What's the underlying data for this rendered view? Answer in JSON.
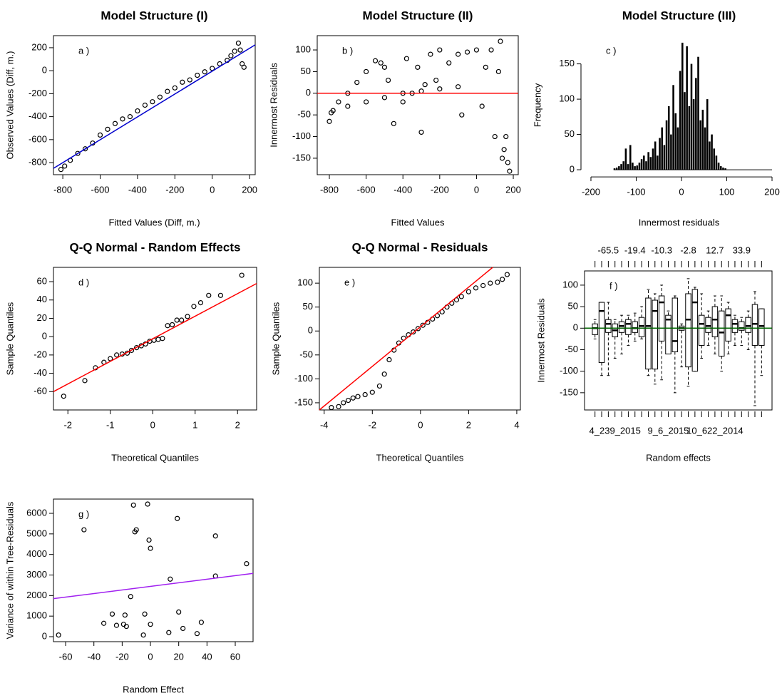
{
  "chart_data": [
    {
      "type": "scatter",
      "title": "Model Structure (I)",
      "x_label": "Fitted Values (Diff, m.)",
      "y_label": "Observed Values (Diff, m.)",
      "annotation": "a )",
      "frame": true,
      "xlim": [
        -850,
        230
      ],
      "ylim": [
        -905,
        305
      ],
      "xticks": [
        -800,
        -600,
        -400,
        -200,
        0,
        200
      ],
      "yticks": [
        -800,
        -600,
        -400,
        -200,
        0,
        200
      ],
      "x": [
        -810,
        -790,
        -760,
        -720,
        -680,
        -640,
        -600,
        -560,
        -520,
        -480,
        -440,
        -400,
        -360,
        -320,
        -280,
        -240,
        -200,
        -160,
        -120,
        -80,
        -40,
        0,
        40,
        80,
        100,
        120,
        140,
        150,
        160,
        170
      ],
      "y": [
        -860,
        -830,
        -780,
        -720,
        -680,
        -630,
        -560,
        -510,
        -460,
        -420,
        -400,
        -350,
        -300,
        -270,
        -230,
        -180,
        -150,
        -100,
        -80,
        -40,
        -10,
        20,
        60,
        90,
        130,
        170,
        240,
        180,
        60,
        30
      ],
      "line": {
        "color": "#0000cc",
        "x": [
          -850,
          230
        ],
        "y": [
          -850,
          225
        ]
      }
    },
    {
      "type": "scatter",
      "title": "Model Structure (II)",
      "x_label": "Fitted Values",
      "y_label": "Innermost Residuals",
      "annotation": "b )",
      "frame": true,
      "xlim": [
        -866,
        227
      ],
      "ylim": [
        -188,
        133
      ],
      "xticks": [
        -800,
        -600,
        -400,
        -200,
        0,
        200
      ],
      "yticks": [
        -150,
        -100,
        -50,
        0,
        50,
        100
      ],
      "x": [
        -800,
        -780,
        -750,
        -700,
        -650,
        -600,
        -550,
        -520,
        -500,
        -480,
        -450,
        -400,
        -380,
        -350,
        -320,
        -300,
        -280,
        -250,
        -220,
        -200,
        -150,
        -100,
        -80,
        -50,
        0,
        30,
        50,
        80,
        100,
        120,
        130,
        140,
        150,
        160,
        170,
        180,
        -790,
        -700,
        -600,
        -500,
        -400,
        -300,
        -200,
        -100
      ],
      "y": [
        -65,
        -40,
        -20,
        0,
        25,
        50,
        75,
        70,
        60,
        30,
        -70,
        -20,
        80,
        0,
        60,
        -90,
        20,
        90,
        30,
        100,
        70,
        90,
        -50,
        95,
        100,
        -30,
        60,
        100,
        -100,
        50,
        120,
        -150,
        -130,
        -100,
        -160,
        -180,
        -45,
        -30,
        -20,
        -10,
        0,
        5,
        10,
        15
      ],
      "hline": {
        "y": 0,
        "color": "#ff0000"
      }
    },
    {
      "type": "histogram",
      "title": "Model Structure (III)",
      "x_label": "Innermost residuals",
      "y_label": "Frequency",
      "annotation": "c )",
      "frame": false,
      "color": "#000000",
      "xlim": [
        -222,
        211
      ],
      "ylim": [
        -7,
        190
      ],
      "xticks": [
        -200,
        -100,
        0,
        100,
        200
      ],
      "yticks": [
        0,
        50,
        100,
        150
      ],
      "bins": [
        -150,
        -145,
        -140,
        -135,
        -130,
        -125,
        -120,
        -115,
        -110,
        -105,
        -100,
        -95,
        -90,
        -85,
        -80,
        -75,
        -70,
        -65,
        -60,
        -55,
        -50,
        -45,
        -40,
        -35,
        -30,
        -25,
        -20,
        -15,
        -10,
        -5,
        0,
        5,
        10,
        15,
        20,
        25,
        30,
        35,
        40,
        45,
        50,
        55,
        60,
        65,
        70,
        75,
        80,
        85,
        90,
        95,
        100
      ],
      "counts": [
        2,
        3,
        5,
        8,
        12,
        30,
        8,
        35,
        10,
        5,
        6,
        10,
        15,
        20,
        12,
        25,
        18,
        30,
        40,
        20,
        45,
        60,
        35,
        70,
        90,
        50,
        120,
        80,
        60,
        140,
        180,
        110,
        175,
        90,
        150,
        100,
        130,
        160,
        70,
        85,
        60,
        100,
        40,
        50,
        30,
        20,
        10,
        5,
        3,
        2
      ]
    },
    {
      "type": "scatter",
      "title": "Q-Q Normal - Random Effects",
      "x_label": "Theoretical Quantiles",
      "y_label": "Sample Quantiles",
      "annotation": "d )",
      "frame": true,
      "xlim": [
        -2.34,
        2.45
      ],
      "ylim": [
        -80,
        75.6
      ],
      "xticks": [
        -2,
        -1,
        0,
        1,
        2
      ],
      "yticks": [
        -60,
        -40,
        -20,
        0,
        20,
        40,
        60
      ],
      "x": [
        -2.1,
        -1.6,
        -1.35,
        -1.15,
        -1.0,
        -0.85,
        -0.72,
        -0.6,
        -0.5,
        -0.38,
        -0.27,
        -0.17,
        -0.07,
        0.03,
        0.13,
        0.23,
        0.35,
        0.46,
        0.57,
        0.68,
        0.82,
        0.97,
        1.13,
        1.32,
        1.6,
        2.1
      ],
      "y": [
        -65,
        -48,
        -34,
        -28,
        -24,
        -20,
        -19,
        -18,
        -15,
        -12,
        -10,
        -8,
        -5,
        -4,
        -3,
        -2,
        12,
        13,
        18,
        18,
        22,
        33,
        37,
        45,
        45,
        67
      ],
      "line": {
        "color": "#ff0000",
        "x": [
          -2.34,
          2.45
        ],
        "y": [
          -60,
          58
        ]
      }
    },
    {
      "type": "scatter",
      "title": "Q-Q Normal - Residuals",
      "x_label": "Theoretical Quantiles",
      "y_label": "Sample Quantiles",
      "annotation": "e )",
      "frame": true,
      "xlim": [
        -4.2,
        4.15
      ],
      "ylim": [
        -165,
        133
      ],
      "xticks": [
        -4,
        -2,
        0,
        2,
        4
      ],
      "yticks": [
        -150,
        -100,
        -50,
        0,
        50,
        100
      ],
      "x": [
        -3.7,
        -3.4,
        -3.2,
        -3.0,
        -2.8,
        -2.6,
        -2.3,
        -2.0,
        -1.7,
        -1.5,
        -1.3,
        -1.1,
        -0.9,
        -0.7,
        -0.5,
        -0.3,
        -0.1,
        0.1,
        0.3,
        0.5,
        0.7,
        0.9,
        1.1,
        1.3,
        1.5,
        1.7,
        2.0,
        2.3,
        2.6,
        2.9,
        3.2,
        3.4,
        3.6
      ],
      "y": [
        -160,
        -158,
        -150,
        -145,
        -140,
        -137,
        -133,
        -128,
        -115,
        -90,
        -60,
        -40,
        -25,
        -15,
        -8,
        -2,
        5,
        12,
        18,
        25,
        32,
        40,
        50,
        58,
        65,
        72,
        82,
        90,
        95,
        100,
        102,
        108,
        118
      ],
      "line": {
        "color": "#ff0000",
        "x": [
          -4.2,
          3.0
        ],
        "y": [
          -165,
          133
        ]
      }
    },
    {
      "type": "box",
      "x_label": "Random effects",
      "y_label": "Innermost Residuals",
      "annotation": "f )",
      "frame": true,
      "ylim": [
        -190,
        133
      ],
      "yticks": [
        -150,
        -100,
        -50,
        0,
        50,
        100
      ],
      "categories": [
        null,
        null,
        null,
        "4_239_2015",
        null,
        null,
        null,
        null,
        null,
        null,
        null,
        "9_6_2015",
        null,
        null,
        null,
        null,
        null,
        null,
        "10_622_2014",
        null,
        null,
        null,
        null,
        null,
        null,
        null
      ],
      "top_labels": [
        null,
        null,
        "-65.5",
        null,
        null,
        null,
        "-19.4",
        null,
        null,
        null,
        "-10.3",
        null,
        null,
        null,
        "-2.8",
        null,
        null,
        null,
        "12.7",
        null,
        null,
        null,
        "33.9",
        null,
        null,
        null
      ],
      "boxes": {
        "min": [
          -25,
          -110,
          -110,
          -70,
          -60,
          -40,
          -30,
          -25,
          -110,
          -130,
          -120,
          -40,
          -150,
          -90,
          -135,
          -100,
          -70,
          -40,
          -60,
          -100,
          -60,
          -40,
          -40,
          -50,
          -180,
          -110
        ],
        "q1": [
          -15,
          -80,
          -10,
          -20,
          -10,
          -15,
          -10,
          -20,
          -95,
          -95,
          -30,
          -60,
          -55,
          -5,
          -90,
          -100,
          -40,
          -10,
          -20,
          -65,
          -30,
          -10,
          -5,
          -10,
          -40,
          -40
        ],
        "median": [
          0,
          40,
          10,
          -5,
          5,
          10,
          0,
          5,
          5,
          40,
          60,
          20,
          -30,
          0,
          20,
          60,
          10,
          5,
          20,
          -10,
          30,
          10,
          0,
          5,
          10,
          5
        ],
        "q3": [
          10,
          60,
          20,
          10,
          15,
          20,
          15,
          25,
          70,
          65,
          75,
          30,
          70,
          5,
          80,
          90,
          30,
          25,
          50,
          40,
          45,
          20,
          15,
          25,
          55,
          45
        ],
        "max": [
          20,
          60,
          60,
          20,
          30,
          30,
          35,
          50,
          90,
          80,
          100,
          40,
          75,
          10,
          115,
          95,
          80,
          40,
          75,
          75,
          60,
          30,
          25,
          40,
          85,
          45
        ]
      },
      "hline": {
        "y": 0,
        "color": "#006400"
      }
    },
    {
      "type": "scatter",
      "x_label": "Random Effect",
      "y_label": "Variance of within Tree-Residuals",
      "annotation": "g )",
      "frame": true,
      "xlim": [
        -68.6,
        72.6
      ],
      "ylim": [
        -243,
        6694
      ],
      "xticks": [
        -60,
        -40,
        -20,
        0,
        20,
        40,
        60
      ],
      "yticks": [
        0,
        1000,
        2000,
        3000,
        4000,
        5000,
        6000
      ],
      "x": [
        -65,
        -47,
        -33,
        -27,
        -24,
        -19,
        -18,
        -17,
        -14,
        -12,
        -11,
        -10,
        -5,
        -4,
        -2,
        -1,
        0,
        0,
        13,
        14,
        19,
        20,
        23,
        33,
        36,
        46,
        46,
        68
      ],
      "y": [
        80,
        5200,
        650,
        1100,
        550,
        600,
        1050,
        500,
        1950,
        6400,
        5100,
        5200,
        80,
        1100,
        6450,
        4700,
        4300,
        600,
        200,
        2800,
        5750,
        1200,
        400,
        150,
        700,
        4900,
        2950,
        3550
      ],
      "line": {
        "color": "#a020f0",
        "x": [
          -68.6,
          72.6
        ],
        "y": [
          1850,
          3080
        ]
      }
    }
  ]
}
